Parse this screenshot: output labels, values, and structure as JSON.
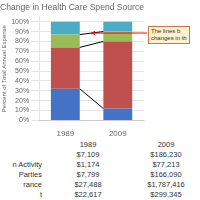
{
  "chart_data": {
    "type": "bar",
    "stacked": true,
    "title": "Change in Health Care Spend Source",
    "ylabel": "Percent of Total Annual Expense",
    "categories": [
      "1989",
      "2009"
    ],
    "series": [
      {
        "color": "#4472C4",
        "values": [
          0.32,
          0.12
        ]
      },
      {
        "color": "#C0504D",
        "values": [
          0.42,
          0.68
        ]
      },
      {
        "color": "#9BBB59",
        "values": [
          0.13,
          0.1
        ]
      },
      {
        "color": "#4BACC6",
        "values": [
          0.13,
          0.1
        ]
      }
    ],
    "ylim": [
      0,
      1.05
    ],
    "yticks": [
      {
        "value": 0,
        "label": "0%"
      },
      {
        "value": 0.1,
        "label": "10%"
      },
      {
        "value": 0.2,
        "label": "20%"
      },
      {
        "value": 0.3,
        "label": "30%"
      },
      {
        "value": 0.4,
        "label": "40%"
      },
      {
        "value": 0.5,
        "label": "50%"
      },
      {
        "value": 0.6,
        "label": "60%"
      },
      {
        "value": 0.7,
        "label": "70%"
      },
      {
        "value": 0.8,
        "label": "80%"
      },
      {
        "value": 0.9,
        "label": "90%"
      },
      {
        "value": 1.0,
        "label": "100%"
      }
    ],
    "grid": true,
    "annotations": [
      "The lines b\nchanges in th"
    ],
    "table": {
      "row_labels": [
        null,
        "n Activity",
        "Parties",
        "rance",
        "t"
      ],
      "columns": [
        {
          "name": "1989",
          "values": [
            "$7,109",
            "$1,174",
            "$7,799",
            "$27,488",
            "$22,617"
          ]
        },
        {
          "name": "2009",
          "values": [
            "$186,230",
            "$77,213",
            "$166,090",
            "$1,787,416",
            "$299,345"
          ]
        }
      ]
    }
  }
}
